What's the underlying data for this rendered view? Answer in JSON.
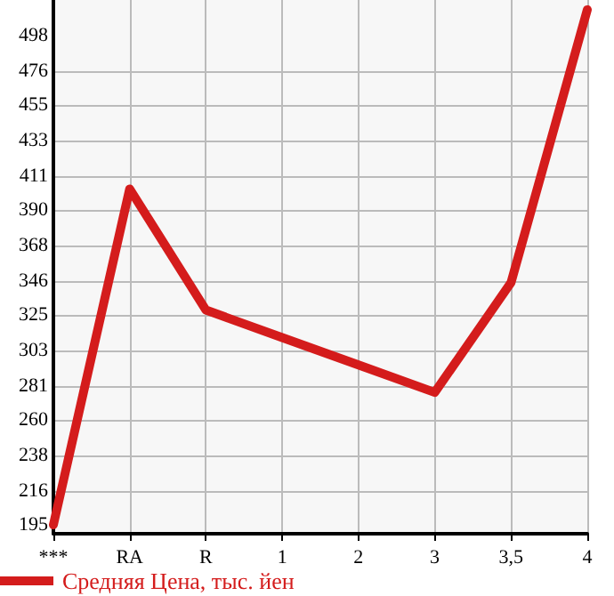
{
  "chart_data": {
    "type": "line",
    "categories": [
      "***",
      "RA",
      "R",
      "1",
      "2",
      "3",
      "3,5",
      "4"
    ],
    "series": [
      {
        "name": "Средняя Цена, тыс. йен",
        "color": "#d41c1c",
        "values": [
          195,
          403,
          328,
          311,
          294,
          277,
          345,
          514
        ]
      }
    ],
    "ylim": [
      189.5,
      520
    ],
    "yticks": [
      195,
      216,
      238,
      260,
      281,
      303,
      325,
      346,
      368,
      390,
      411,
      433,
      455,
      476,
      498
    ],
    "grid": true,
    "legend": "bottom",
    "marker": "none",
    "line_style": "solid"
  }
}
